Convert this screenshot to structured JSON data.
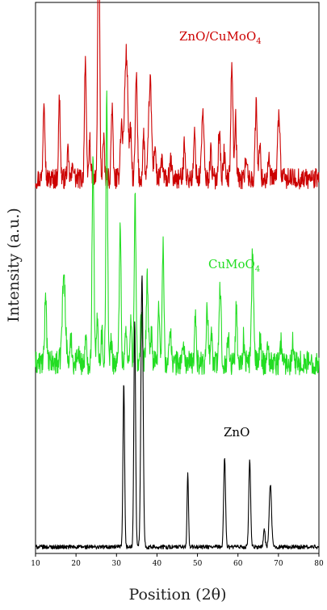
{
  "chart_data": {
    "type": "line",
    "xlabel": "Position (2θ)",
    "ylabel": "Intensity (a.u.)",
    "xlim": [
      10,
      80
    ],
    "x_ticks": [
      "10",
      "20",
      "30",
      "40",
      "50",
      "60",
      "70",
      "80"
    ],
    "y_ticks_shown": false,
    "grid": false,
    "series": [
      {
        "name": "ZnO/CuMoO4",
        "label_main": "ZnO/CuMoO",
        "label_sub": "4",
        "color": "#cc0000",
        "offset": 2.12,
        "baseline_noise": 0.06,
        "peaks": [
          [
            12.1,
            0.48,
            0.32
          ],
          [
            15.9,
            0.46,
            0.3
          ],
          [
            18.0,
            0.14,
            0.3
          ],
          [
            19.3,
            0.09,
            0.3
          ],
          [
            22.3,
            0.7,
            0.3
          ],
          [
            23.4,
            0.22,
            0.3
          ],
          [
            25.6,
            1.62,
            0.32
          ],
          [
            26.8,
            0.22,
            0.3
          ],
          [
            28.9,
            0.42,
            0.3
          ],
          [
            31.2,
            0.3,
            0.4
          ],
          [
            32.4,
            0.72,
            0.6
          ],
          [
            33.5,
            0.25,
            0.3
          ],
          [
            34.9,
            0.58,
            0.35
          ],
          [
            36.7,
            0.25,
            0.3
          ],
          [
            38.3,
            0.56,
            0.5
          ],
          [
            39.5,
            0.2,
            0.3
          ],
          [
            41.2,
            0.12,
            0.3
          ],
          [
            43.4,
            0.1,
            0.3
          ],
          [
            46.8,
            0.22,
            0.3
          ],
          [
            49.3,
            0.26,
            0.3
          ],
          [
            51.3,
            0.38,
            0.4
          ],
          [
            53.3,
            0.16,
            0.3
          ],
          [
            55.4,
            0.28,
            0.35
          ],
          [
            56.6,
            0.15,
            0.3
          ],
          [
            58.5,
            0.68,
            0.35
          ],
          [
            59.4,
            0.35,
            0.3
          ],
          [
            62.0,
            0.14,
            0.3
          ],
          [
            64.5,
            0.42,
            0.35
          ],
          [
            65.4,
            0.18,
            0.3
          ],
          [
            67.6,
            0.1,
            0.3
          ],
          [
            70.1,
            0.38,
            0.4
          ]
        ]
      },
      {
        "name": "CuMoO4",
        "label_main": "CuMoO",
        "label_sub": "4",
        "color": "#22dd22",
        "offset": 1.06,
        "baseline_noise": 0.07,
        "peaks": [
          [
            12.5,
            0.42,
            0.3
          ],
          [
            17.0,
            0.5,
            0.55
          ],
          [
            18.8,
            0.14,
            0.3
          ],
          [
            20.5,
            0.09,
            0.3
          ],
          [
            22.4,
            0.12,
            0.3
          ],
          [
            24.2,
            1.22,
            0.32
          ],
          [
            25.3,
            0.25,
            0.3
          ],
          [
            26.4,
            0.18,
            0.3
          ],
          [
            27.6,
            1.52,
            0.3
          ],
          [
            28.7,
            0.12,
            0.3
          ],
          [
            30.9,
            0.82,
            0.3
          ],
          [
            32.3,
            0.18,
            0.3
          ],
          [
            33.5,
            0.25,
            0.3
          ],
          [
            34.6,
            0.93,
            0.3
          ],
          [
            36.1,
            0.28,
            0.3
          ],
          [
            37.6,
            0.48,
            0.35
          ],
          [
            38.6,
            0.18,
            0.3
          ],
          [
            40.5,
            0.32,
            0.3
          ],
          [
            41.5,
            0.68,
            0.3
          ],
          [
            43.3,
            0.22,
            0.3
          ],
          [
            46.5,
            0.12,
            0.3
          ],
          [
            49.5,
            0.26,
            0.3
          ],
          [
            52.4,
            0.3,
            0.35
          ],
          [
            53.4,
            0.2,
            0.3
          ],
          [
            55.6,
            0.43,
            0.35
          ],
          [
            57.6,
            0.16,
            0.3
          ],
          [
            59.6,
            0.32,
            0.3
          ],
          [
            61.4,
            0.14,
            0.3
          ],
          [
            63.6,
            0.66,
            0.35
          ],
          [
            65.5,
            0.14,
            0.3
          ],
          [
            67.4,
            0.12,
            0.3
          ],
          [
            70.6,
            0.12,
            0.3
          ],
          [
            73.6,
            0.14,
            0.3
          ]
        ]
      },
      {
        "name": "ZnO",
        "label_main": "ZnO",
        "label_sub": "",
        "color": "#000000",
        "offset": 0.0,
        "baseline_noise": 0.012,
        "peaks": [
          [
            31.8,
            0.94,
            0.28
          ],
          [
            34.5,
            1.3,
            0.3
          ],
          [
            36.3,
            1.56,
            0.38
          ],
          [
            47.6,
            0.42,
            0.25
          ],
          [
            56.7,
            0.52,
            0.32
          ],
          [
            62.9,
            0.5,
            0.32
          ],
          [
            66.5,
            0.1,
            0.3
          ],
          [
            68.0,
            0.36,
            0.4
          ]
        ]
      }
    ]
  }
}
